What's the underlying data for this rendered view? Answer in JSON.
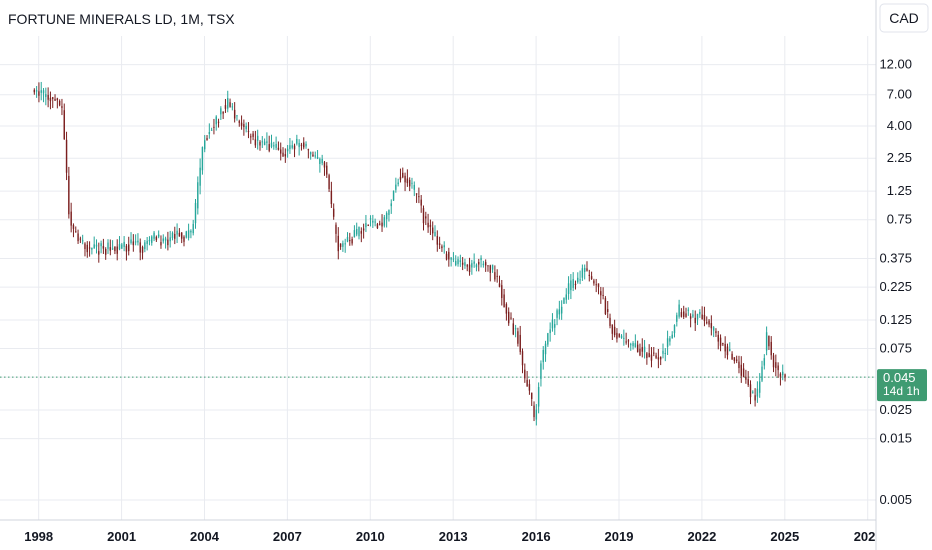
{
  "header": {
    "title": "FORTUNE MINERALS LD, 1M, TSX",
    "currency": "CAD"
  },
  "price_badge": {
    "price": "0.045",
    "countdown": "14d 1h"
  },
  "colors": {
    "up": "#26a69a",
    "down": "#7b1f1f",
    "grid": "#e9ebf0",
    "badge": "#3f9b72",
    "last_line": "#3f9b72"
  },
  "chart_data": {
    "type": "candlestick",
    "title": "FORTUNE MINERALS LD, 1M, TSX",
    "yscale": "log",
    "ylim": [
      0.0035,
      20
    ],
    "xlim": [
      1996.6,
      2028.3
    ],
    "yticks": [
      "12.00",
      "7.00",
      "4.00",
      "2.25",
      "1.25",
      "0.75",
      "0.375",
      "0.225",
      "0.125",
      "0.075",
      "0.045",
      "0.025",
      "0.015",
      "0.005"
    ],
    "xticks": [
      "1998",
      "2001",
      "2004",
      "2007",
      "2010",
      "2013",
      "2016",
      "2019",
      "2022",
      "2025",
      "202"
    ],
    "last_price": 0.045,
    "trend": {
      "t": [
        1997.8,
        1998.2,
        1998.6,
        1998.9,
        1999.15,
        1999.5,
        1999.9,
        2000.5,
        2001.0,
        2001.5,
        2001.8,
        2002.2,
        2002.6,
        2003.0,
        2003.3,
        2003.6,
        2004.0,
        2004.3,
        2004.7,
        2004.9,
        2005.2,
        2005.6,
        2006.0,
        2006.5,
        2007.0,
        2007.5,
        2008.0,
        2008.4,
        2008.7,
        2008.9,
        2009.2,
        2009.6,
        2010.0,
        2010.5,
        2010.8,
        2011.1,
        2011.4,
        2011.7,
        2012.0,
        2012.5,
        2013.0,
        2013.5,
        2014.0,
        2014.5,
        2014.8,
        2015.1,
        2015.4,
        2015.6,
        2015.8,
        2016.0,
        2016.2,
        2016.5,
        2016.9,
        2017.2,
        2017.5,
        2017.8,
        2018.1,
        2018.4,
        2018.7,
        2019.0,
        2019.5,
        2020.0,
        2020.5,
        2020.9,
        2021.2,
        2021.5,
        2021.8,
        2022.0,
        2022.5,
        2023.0,
        2023.5,
        2023.8,
        2024.0,
        2024.2,
        2024.4,
        2024.6,
        2024.8,
        2025.0
      ],
      "v": [
        8.0,
        6.9,
        6.4,
        5.5,
        0.75,
        0.5,
        0.45,
        0.45,
        0.45,
        0.5,
        0.45,
        0.55,
        0.5,
        0.6,
        0.55,
        0.6,
        3.0,
        3.8,
        5.5,
        6.0,
        4.5,
        3.5,
        3.0,
        2.7,
        2.5,
        3.0,
        2.2,
        2.0,
        0.75,
        0.45,
        0.5,
        0.6,
        0.75,
        0.7,
        1.1,
        1.7,
        1.5,
        1.2,
        0.75,
        0.5,
        0.35,
        0.32,
        0.35,
        0.3,
        0.2,
        0.12,
        0.09,
        0.045,
        0.035,
        0.02,
        0.06,
        0.1,
        0.15,
        0.22,
        0.25,
        0.3,
        0.25,
        0.2,
        0.12,
        0.09,
        0.08,
        0.07,
        0.065,
        0.09,
        0.15,
        0.14,
        0.13,
        0.135,
        0.1,
        0.07,
        0.05,
        0.035,
        0.03,
        0.05,
        0.1,
        0.06,
        0.05,
        0.045
      ]
    }
  }
}
